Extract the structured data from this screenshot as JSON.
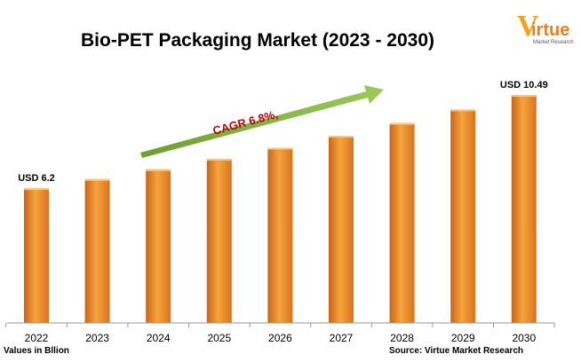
{
  "logo": {
    "initial": "V",
    "rest": "irtue",
    "tagline": "Market Research"
  },
  "chart_data": {
    "type": "bar",
    "title": "Bio-PET Packaging Market (2023 - 2030)",
    "categories": [
      "2022",
      "2023",
      "2024",
      "2025",
      "2026",
      "2027",
      "2028",
      "2029",
      "2030"
    ],
    "values": [
      6.2,
      6.62,
      7.07,
      7.55,
      8.06,
      8.61,
      9.2,
      9.82,
      10.49
    ],
    "data_labels": [
      "USD 6.2",
      "",
      "",
      "",
      "",
      "",
      "",
      "",
      "USD 10.49"
    ],
    "ylim": [
      0,
      11
    ],
    "grid": false,
    "annotation": "CAGR 6.8%,",
    "bar_color": "#f29a2e",
    "arrow_color": "#8fbf4a",
    "annotation_color": "#c00000"
  },
  "footer": {
    "units_note": "Values in Bllion",
    "source": "Source: Virtue Market Research"
  }
}
